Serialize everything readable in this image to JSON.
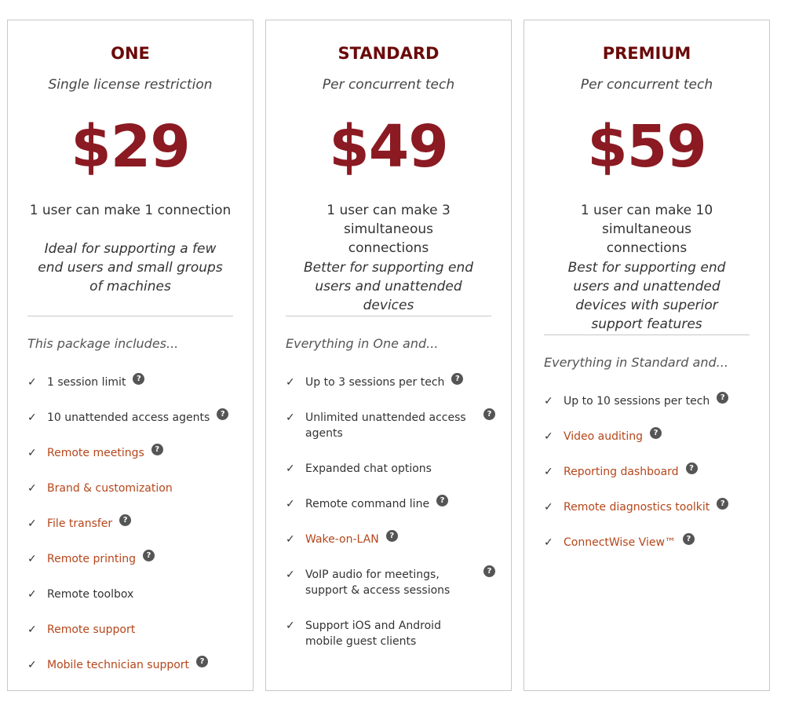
{
  "colors": {
    "title": "#6b0a0a",
    "price": "#8b1a22",
    "link": "#b5461a",
    "help_icon": "#555555"
  },
  "plans": [
    {
      "name": "ONE",
      "subtitle": "Single license restriction",
      "price": "$29",
      "connections": "1 user can make 1 connection",
      "ideal": "Ideal for supporting a few end users and small groups of machines",
      "includes": "This package includes...",
      "features": [
        {
          "label": "1 session limit",
          "link": false,
          "help": true
        },
        {
          "label": "10 unattended access agents",
          "link": false,
          "help": true
        },
        {
          "label": "Remote meetings",
          "link": true,
          "help": true
        },
        {
          "label": "Brand & customization",
          "link": true,
          "help": false
        },
        {
          "label": "File transfer",
          "link": true,
          "help": true
        },
        {
          "label": "Remote printing",
          "link": true,
          "help": true
        },
        {
          "label": "Remote toolbox",
          "link": false,
          "help": false
        },
        {
          "label": "Remote support",
          "link": true,
          "help": false
        },
        {
          "label": "Mobile technician support",
          "link": true,
          "help": true
        }
      ]
    },
    {
      "name": "STANDARD",
      "subtitle": "Per concurrent tech",
      "price": "$49",
      "connections": "1 user can make 3 simultaneous connections",
      "ideal": "Better for supporting end users and unattended devices",
      "includes": "Everything in One and...",
      "features": [
        {
          "label": "Up to 3 sessions per tech",
          "link": false,
          "help": true
        },
        {
          "label": "Unlimited unattended access agents",
          "link": false,
          "help": true
        },
        {
          "label": "Expanded chat options",
          "link": false,
          "help": false
        },
        {
          "label": "Remote command line",
          "link": false,
          "help": true
        },
        {
          "label": "Wake-on-LAN",
          "link": true,
          "help": true
        },
        {
          "label": "VoIP audio for meetings, support & access sessions",
          "link": false,
          "help": true
        },
        {
          "label": "Support iOS and Android mobile guest clients",
          "link": false,
          "help": false
        }
      ]
    },
    {
      "name": "PREMIUM",
      "subtitle": "Per concurrent tech",
      "price": "$59",
      "connections": "1 user can make 10 simultaneous connections",
      "ideal": "Best for supporting end users and unattended devices with superior support features",
      "includes": "Everything in Standard and...",
      "features": [
        {
          "label": "Up to 10 sessions per tech",
          "link": false,
          "help": true
        },
        {
          "label": "Video auditing",
          "link": true,
          "help": true
        },
        {
          "label": "Reporting dashboard",
          "link": true,
          "help": true
        },
        {
          "label": "Remote diagnostics toolkit",
          "link": true,
          "help": true
        },
        {
          "label": "ConnectWise View™",
          "link": true,
          "help": true
        }
      ]
    }
  ],
  "check_glyph": "✓",
  "help_glyph": "?"
}
